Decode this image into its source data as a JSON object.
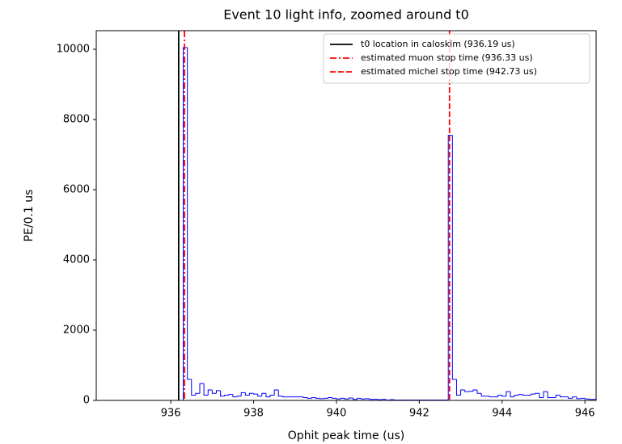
{
  "chart_data": {
    "type": "histogram",
    "title": "Event 10 light info, zoomed around t0",
    "x_label": "Ophit peak time (us)",
    "y_label": "PE/0.1 us",
    "color": "#0000ff",
    "bins": [
      936.3,
      936.4,
      936.5,
      936.6,
      936.7,
      936.8,
      936.9,
      937.0,
      937.1,
      937.2,
      937.3,
      937.4,
      937.5,
      937.6,
      937.7,
      937.8,
      937.9,
      938.0,
      938.1,
      938.2,
      938.3,
      938.4,
      938.5,
      938.6,
      938.7,
      938.8,
      938.9,
      939.0,
      939.1,
      939.2,
      939.3,
      939.4,
      939.5,
      939.6,
      939.7,
      939.8,
      939.9,
      940.0,
      940.1,
      940.2,
      940.3,
      940.4,
      940.5,
      940.6,
      940.7,
      940.8,
      940.9,
      941.0,
      941.1,
      941.2,
      941.3,
      941.4,
      941.5,
      941.6,
      941.7,
      941.8,
      941.9,
      942.0,
      942.1,
      942.2,
      942.3,
      942.4,
      942.5,
      942.6,
      942.7,
      942.8,
      942.9,
      943.0,
      943.1,
      943.2,
      943.3,
      943.4,
      943.5,
      943.6,
      943.7,
      943.8,
      943.9,
      944.0,
      944.1,
      944.2,
      944.3,
      944.4,
      944.5,
      944.6,
      944.7,
      944.8,
      944.9,
      945.0,
      945.1,
      945.2,
      945.3,
      945.4,
      945.5,
      945.6,
      945.7,
      945.8,
      945.9,
      946.0,
      946.1,
      946.2,
      946.3
    ],
    "counts": [
      10050,
      600,
      150,
      200,
      480,
      150,
      300,
      200,
      280,
      120,
      150,
      170,
      100,
      120,
      220,
      150,
      200,
      180,
      120,
      200,
      100,
      150,
      300,
      120,
      100,
      100,
      100,
      100,
      100,
      80,
      60,
      80,
      60,
      50,
      60,
      80,
      60,
      40,
      60,
      40,
      70,
      30,
      60,
      40,
      50,
      30,
      30,
      20,
      30,
      10,
      20,
      10,
      10,
      10,
      10,
      10,
      10,
      10,
      10,
      10,
      10,
      10,
      10,
      10,
      7550,
      600,
      150,
      300,
      250,
      260,
      300,
      200,
      120,
      120,
      100,
      100,
      150,
      120,
      250,
      100,
      150,
      170,
      150,
      150,
      180,
      200,
      80,
      250,
      80,
      80,
      150,
      100,
      100,
      60,
      100,
      50,
      60,
      40,
      30,
      30
    ],
    "vlines": [
      {
        "name": "t0 location in caloskim (936.19 us)",
        "x": 936.19,
        "color": "#000000",
        "linestyle": "solid"
      },
      {
        "name": "estimated muon stop time (936.33 us)",
        "x": 936.33,
        "color": "#ff0000",
        "linestyle": "dashdot"
      },
      {
        "name": "estimated michel stop time (942.73 us)",
        "x": 942.73,
        "color": "#ff0000",
        "linestyle": "dashed"
      }
    ],
    "legend": "upper right",
    "xlim": [
      934.2,
      946.27
    ],
    "ylim": [
      0,
      10530
    ],
    "xticks": [
      936,
      938,
      940,
      942,
      944,
      946
    ],
    "yticks": [
      0,
      2000,
      4000,
      6000,
      8000,
      10000
    ]
  }
}
